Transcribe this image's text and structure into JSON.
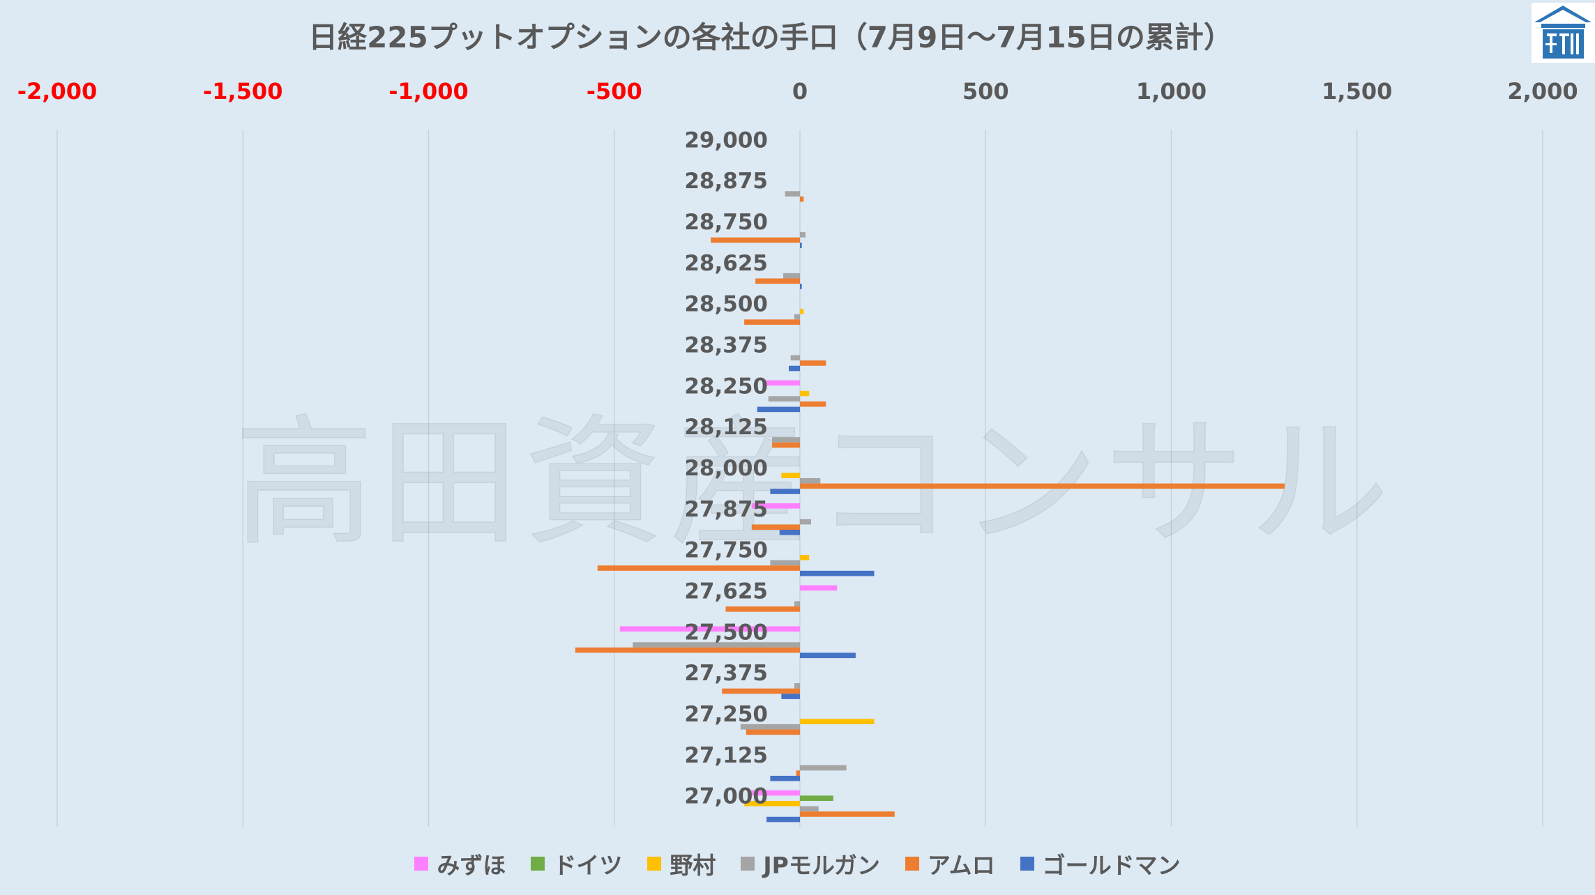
{
  "chart_data": {
    "type": "bar",
    "orientation": "horizontal",
    "title": "日経225プットオプションの各社の手口（7月9日～7月15日の累計）",
    "xlim": [
      -2000,
      2000
    ],
    "x_ticks": [
      -2000,
      -1500,
      -1000,
      -500,
      0,
      500,
      1000,
      1500,
      2000
    ],
    "x_tick_labels": [
      "-2,000",
      "-1,500",
      "-1,000",
      "-500",
      "0",
      "500",
      "1,000",
      "1,500",
      "2,000"
    ],
    "x_axis_position": "top",
    "negative_tick_color": "#ff0000",
    "categories": [
      "29,000",
      "28,875",
      "28,750",
      "28,625",
      "28,500",
      "28,375",
      "28,250",
      "28,125",
      "28,000",
      "27,875",
      "27,750",
      "27,625",
      "27,500",
      "27,375",
      "27,250",
      "27,125",
      "27,000"
    ],
    "series": [
      {
        "name": "みずほ",
        "color": "#ff80ff",
        "values": [
          0,
          0,
          0,
          0,
          0,
          0,
          -100,
          0,
          0,
          -130,
          0,
          100,
          -485,
          0,
          0,
          0,
          -135
        ]
      },
      {
        "name": "ドイツ",
        "color": "#70ad47",
        "values": [
          0,
          0,
          0,
          0,
          0,
          0,
          0,
          0,
          0,
          0,
          0,
          0,
          0,
          0,
          0,
          0,
          90
        ]
      },
      {
        "name": "野村",
        "color": "#ffc000",
        "values": [
          0,
          0,
          0,
          0,
          10,
          0,
          25,
          0,
          -50,
          0,
          25,
          0,
          0,
          0,
          200,
          0,
          -150
        ]
      },
      {
        "name": "JPモルガン",
        "color": "#a5a5a5",
        "values": [
          0,
          -40,
          15,
          -45,
          -15,
          -25,
          -85,
          -75,
          55,
          30,
          -80,
          -15,
          -450,
          -15,
          -160,
          125,
          50
        ]
      },
      {
        "name": "アムロ",
        "color": "#ed7d31",
        "values": [
          0,
          10,
          -240,
          -120,
          -150,
          70,
          70,
          -75,
          1305,
          -130,
          -545,
          -200,
          -605,
          -210,
          -145,
          -10,
          255
        ]
      },
      {
        "name": "ゴールドマン",
        "color": "#4472c4",
        "values": [
          0,
          0,
          5,
          5,
          0,
          -30,
          -115,
          0,
          -80,
          -55,
          200,
          0,
          150,
          -50,
          0,
          -80,
          -90
        ]
      }
    ],
    "grid": "vertical",
    "legend": "bottom"
  },
  "watermark": "高田資産コンサル",
  "logo": {
    "icon": "house-icon",
    "color": "#2e75b6"
  }
}
